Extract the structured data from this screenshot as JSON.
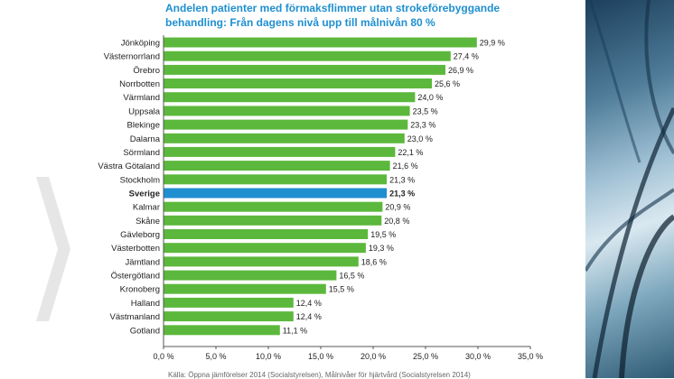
{
  "title_line1": "Andelen patienter med förmaksflimmer utan strokeförebyggande",
  "title_line2": "behandling: Från dagens nivå upp till målnivån 80 %",
  "source": "Källa: Öppna jämförelser 2014 (Socialstyrelsen), Målnivåer för hjärtvård (Socialstyrelsen 2014)",
  "colors": {
    "bar": "#5cb83c",
    "highlight": "#1f8fd0",
    "title": "#1f8fd0"
  },
  "chart_data": {
    "type": "bar",
    "orientation": "horizontal",
    "categories": [
      "Jönköping",
      "Västernorrland",
      "Örebro",
      "Norrbotten",
      "Värmland",
      "Uppsala",
      "Blekinge",
      "Dalarna",
      "Sörmland",
      "Västra Götaland",
      "Stockholm",
      "Sverige",
      "Kalmar",
      "Skåne",
      "Gävleborg",
      "Västerbotten",
      "Jämtland",
      "Östergötland",
      "Kronoberg",
      "Halland",
      "Västmanland",
      "Gotland"
    ],
    "values": [
      29.9,
      27.4,
      26.9,
      25.6,
      24.0,
      23.5,
      23.3,
      23.0,
      22.1,
      21.6,
      21.3,
      21.3,
      20.9,
      20.8,
      19.5,
      19.3,
      18.6,
      16.5,
      15.5,
      12.4,
      12.4,
      11.1
    ],
    "value_labels": [
      "29,9 %",
      "27,4 %",
      "26,9 %",
      "25,6 %",
      "24,0 %",
      "23,5 %",
      "23,3 %",
      "23,0 %",
      "22,1 %",
      "21,6 %",
      "21,3 %",
      "21,3 %",
      "20,9 %",
      "20,8 %",
      "19,5 %",
      "19,3 %",
      "18,6 %",
      "16,5 %",
      "15,5 %",
      "12,4 %",
      "12,4 %",
      "11,1 %"
    ],
    "highlight_category": "Sverige",
    "xlim": [
      0,
      35
    ],
    "x_ticks": [
      "0,0 %",
      "5,0 %",
      "10,0 %",
      "15,0 %",
      "20,0 %",
      "25,0 %",
      "30,0 %",
      "35,0 %"
    ],
    "grid": false
  }
}
